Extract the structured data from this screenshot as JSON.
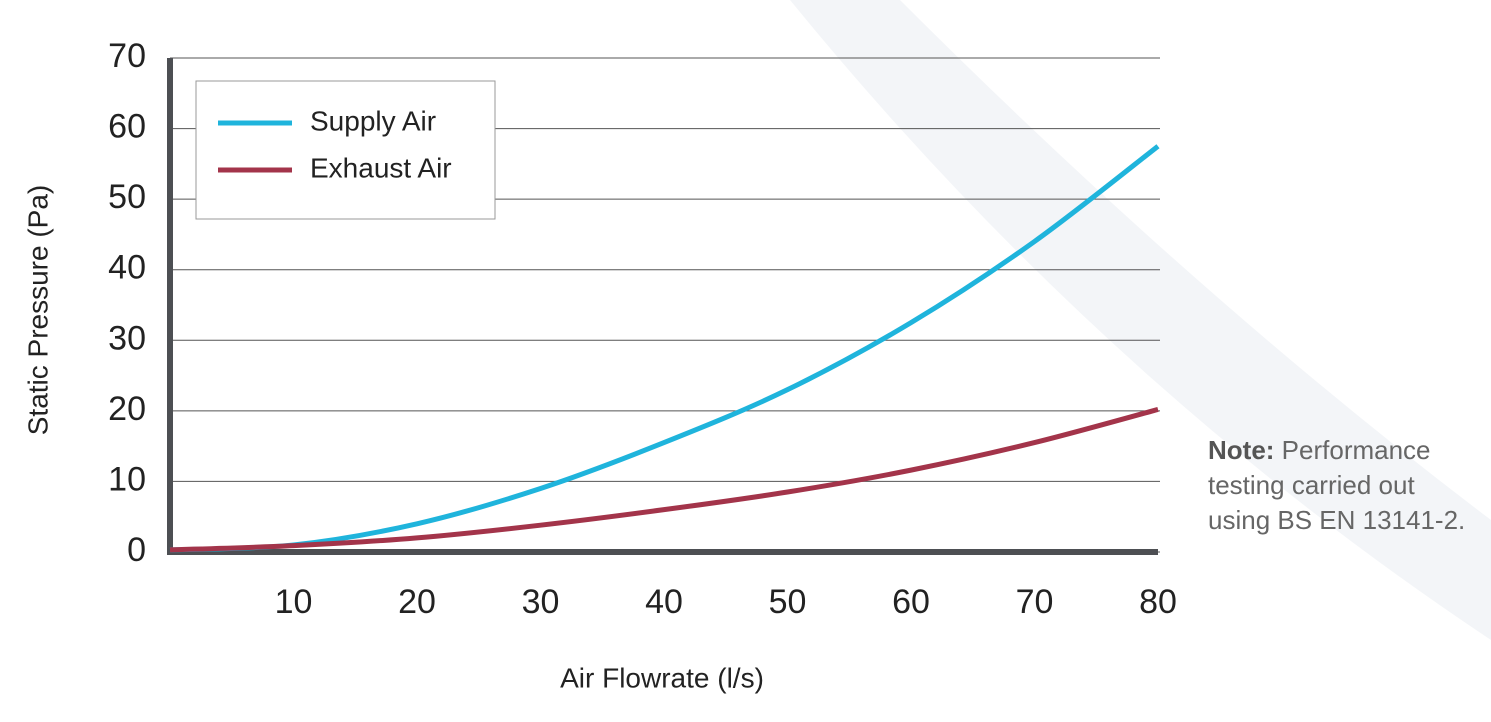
{
  "chart_data": {
    "type": "line",
    "x_label": "Air Flowrate (l/s)",
    "y_label": "Static Pressure (Pa)",
    "x": [
      0,
      10,
      20,
      30,
      40,
      50,
      60,
      70,
      80
    ],
    "series": [
      {
        "name": "Supply Air",
        "color": "#1fb4dc",
        "values": [
          0.3,
          1,
          4,
          9,
          15.5,
          23,
          32.5,
          44,
          57.5
        ]
      },
      {
        "name": "Exhaust Air",
        "color": "#a3344a",
        "values": [
          0.3,
          0.9,
          2,
          3.8,
          6,
          8.5,
          11.6,
          15.5,
          20.2
        ]
      }
    ],
    "xlim": [
      0,
      80
    ],
    "xticks": [
      10,
      20,
      30,
      40,
      50,
      60,
      70,
      80
    ],
    "ylim": [
      0,
      70
    ],
    "yticks": [
      0,
      10,
      20,
      30,
      40,
      50,
      60,
      70
    ],
    "grid": true,
    "legend": "upper left",
    "note_label": "Note:",
    "note_text": "Performance testing carried out using BS EN 13141-2."
  }
}
